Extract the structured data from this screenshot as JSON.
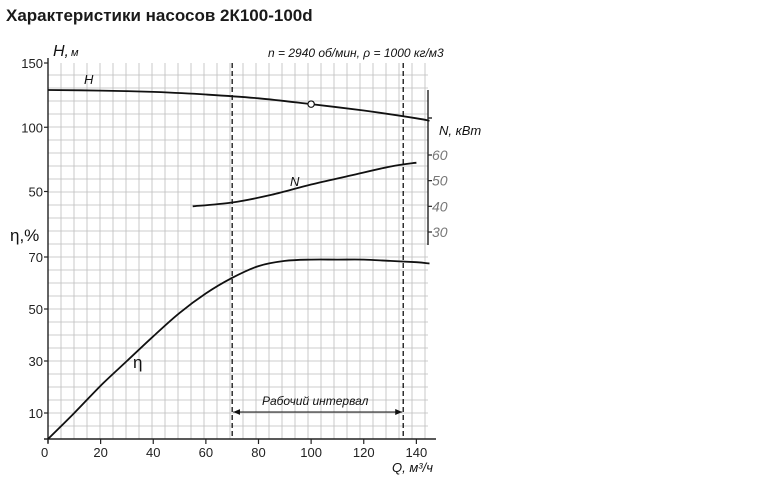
{
  "title": "Характеристики насосов 2К100-100d",
  "chart_data": {
    "type": "line",
    "title": "Характеристики насосов 2К100-100d",
    "conditions": "n = 2940 об/мин, ρ = 1000 кг/м3",
    "x_axis": {
      "label": "Q, м³/ч",
      "ticks": [
        0,
        20,
        40,
        60,
        80,
        100,
        120,
        140
      ],
      "range": [
        0,
        145
      ]
    },
    "h_axis": {
      "label": "H, м",
      "ticks": [
        50,
        100,
        150
      ]
    },
    "n_axis": {
      "label": "N, кВт",
      "ticks": [
        30,
        40,
        50,
        60
      ]
    },
    "eta_axis": {
      "label": "η,%",
      "ticks": [
        10,
        30,
        50,
        70
      ]
    },
    "series": [
      {
        "name": "H",
        "x": [
          0,
          20,
          40,
          60,
          80,
          100,
          120,
          140,
          145
        ],
        "y": [
          129,
          128.5,
          127.5,
          125.5,
          122.5,
          118,
          113,
          107,
          105
        ]
      },
      {
        "name": "N",
        "x": [
          55,
          70,
          85,
          100,
          115,
          130,
          140
        ],
        "y": [
          40,
          41.5,
          44.5,
          48.5,
          52,
          55.5,
          57
        ]
      },
      {
        "name": "η",
        "x": [
          0,
          10,
          20,
          30,
          40,
          50,
          60,
          70,
          80,
          90,
          100,
          110,
          120,
          130,
          140,
          145
        ],
        "y": [
          0,
          10,
          20.5,
          30,
          39.5,
          48.5,
          56,
          62,
          66.5,
          68.5,
          69,
          69,
          69,
          68.5,
          68,
          67.5
        ]
      }
    ],
    "design_point": {
      "q": 100,
      "h": 118
    },
    "working_interval": {
      "label": "Рабочий интервал",
      "q_min": 70,
      "q_max": 135
    },
    "grid": true
  }
}
